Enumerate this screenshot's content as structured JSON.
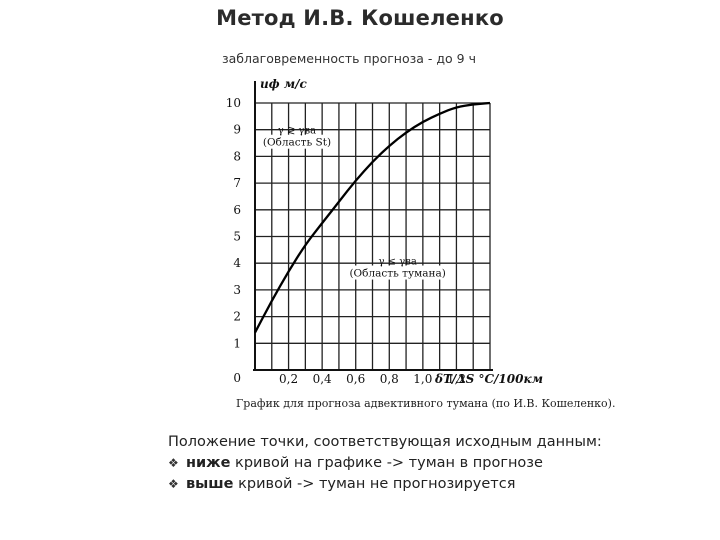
{
  "slide": {
    "title": "Метод И.В. Кошеленко",
    "subtitle": "заблаговременность  прогноза - до 9 ч"
  },
  "notes": {
    "intro": "Положение точки, соответствующая исходным данным:",
    "items": [
      {
        "bullet": "❖",
        "emphasis": "ниже",
        "text": " кривой на графике -> туман в прогнозе"
      },
      {
        "bullet": "❖",
        "emphasis": "выше",
        "text": " кривой -> туман не прогнозируется"
      }
    ]
  },
  "chart_data": {
    "type": "line",
    "title": "",
    "caption": "График для прогноза адвективного тумана (по И.В. Кошеленко).",
    "ylabel": "uф м/с",
    "xlabel": "δT/ΔS °C/100км",
    "xlim": [
      0,
      1.4
    ],
    "ylim": [
      0,
      10
    ],
    "x_ticks": [
      "0",
      "0,2",
      "0,4",
      "0,6",
      "0,8",
      "1,0",
      "1,2"
    ],
    "x_tick_values": [
      0,
      0.2,
      0.4,
      0.6,
      0.8,
      1.0,
      1.2
    ],
    "y_ticks": [
      "0",
      "1",
      "2",
      "3",
      "4",
      "5",
      "6",
      "7",
      "8",
      "9",
      "10"
    ],
    "grid": true,
    "series": [
      {
        "x": [
          0.0,
          0.1,
          0.2,
          0.3,
          0.4,
          0.5,
          0.6,
          0.7,
          0.8,
          0.9,
          1.0,
          1.1,
          1.2,
          1.3,
          1.4
        ],
        "y": [
          1.4,
          2.6,
          3.7,
          4.7,
          5.5,
          6.3,
          7.1,
          7.8,
          8.4,
          8.9,
          9.3,
          9.6,
          9.85,
          9.95,
          10.0
        ]
      }
    ],
    "annotations": [
      {
        "x": 0.25,
        "y": 8.7,
        "formula": "γ ≷ γва",
        "label": "(Область St)"
      },
      {
        "x": 0.85,
        "y": 3.8,
        "formula": "γ ≤ γва",
        "label": "(Область тумана)"
      }
    ]
  }
}
